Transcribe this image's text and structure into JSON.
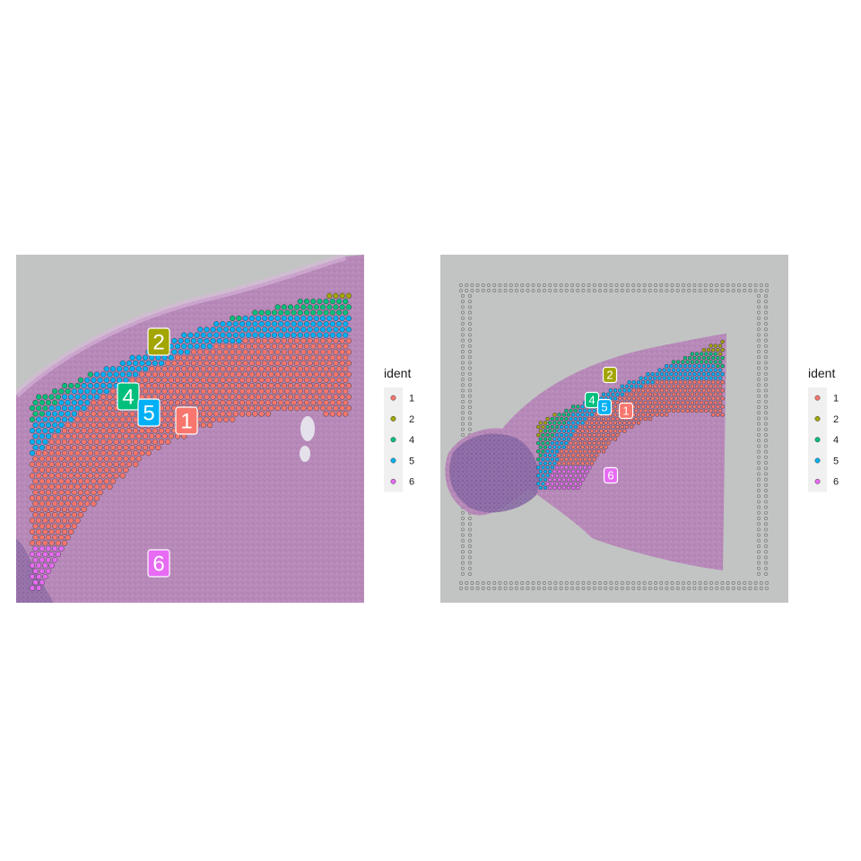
{
  "chart_data": [
    {
      "type": "scatter",
      "legend": {
        "title": "ident",
        "position": "right",
        "items": [
          {
            "label": "1",
            "color": "#F8766D"
          },
          {
            "label": "2",
            "color": "#A3A500"
          },
          {
            "label": "4",
            "color": "#00BF7D"
          },
          {
            "label": "5",
            "color": "#00B0F6"
          },
          {
            "label": "6",
            "color": "#E76BF3"
          }
        ]
      },
      "cluster_labels": [
        "2",
        "4",
        "5",
        "1",
        "6"
      ],
      "background": "H&E tissue section (zoomed)"
    },
    {
      "type": "scatter",
      "legend": {
        "title": "ident",
        "position": "right",
        "items": [
          {
            "label": "1",
            "color": "#F8766D"
          },
          {
            "label": "2",
            "color": "#A3A500"
          },
          {
            "label": "4",
            "color": "#00BF7D"
          },
          {
            "label": "5",
            "color": "#00B0F6"
          },
          {
            "label": "6",
            "color": "#E76BF3"
          }
        ]
      },
      "cluster_labels": [
        "2",
        "4",
        "5",
        "1",
        "6"
      ],
      "background": "H&E tissue section (full slide)"
    }
  ]
}
